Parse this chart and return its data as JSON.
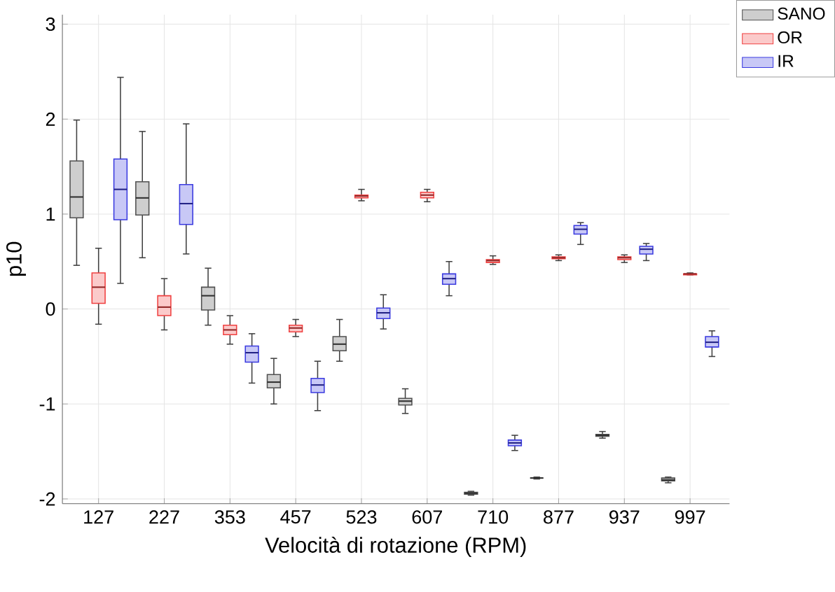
{
  "chart_data": {
    "type": "box",
    "xlabel": "Velocità di rotazione (RPM)",
    "ylabel": "p10",
    "categories": [
      "127",
      "227",
      "353",
      "457",
      "523",
      "607",
      "710",
      "877",
      "937",
      "997"
    ],
    "ylim": [
      -2.05,
      3.1
    ],
    "yticks": [
      -2,
      -1,
      0,
      1,
      2,
      3
    ],
    "grid": true,
    "legend": "top right",
    "series": [
      {
        "name": "SANO",
        "color": "#505050",
        "boxes": [
          {
            "low": 0.46,
            "q1": 0.96,
            "median": 1.18,
            "q3": 1.56,
            "high": 1.99
          },
          {
            "low": 0.54,
            "q1": 0.99,
            "median": 1.17,
            "q3": 1.34,
            "high": 1.87
          },
          {
            "low": -0.17,
            "q1": -0.01,
            "median": 0.14,
            "q3": 0.23,
            "high": 0.43
          },
          {
            "low": -1.0,
            "q1": -0.83,
            "median": -0.77,
            "q3": -0.69,
            "high": -0.52
          },
          {
            "low": -0.55,
            "q1": -0.44,
            "median": -0.37,
            "q3": -0.29,
            "high": -0.11
          },
          {
            "low": -1.1,
            "q1": -1.01,
            "median": -0.97,
            "q3": -0.94,
            "high": -0.84
          },
          {
            "low": -1.96,
            "q1": -1.95,
            "median": -1.94,
            "q3": -1.93,
            "high": -1.92
          },
          {
            "low": -1.79,
            "q1": -1.78,
            "median": -1.78,
            "q3": -1.78,
            "high": -1.77
          },
          {
            "low": -1.36,
            "q1": -1.34,
            "median": -1.33,
            "q3": -1.32,
            "high": -1.29
          },
          {
            "low": -1.83,
            "q1": -1.81,
            "median": -1.8,
            "q3": -1.78,
            "high": -1.77
          }
        ]
      },
      {
        "name": "OR",
        "color": "#f04040",
        "boxes": [
          {
            "low": -0.16,
            "q1": 0.06,
            "median": 0.23,
            "q3": 0.38,
            "high": 0.64
          },
          {
            "low": -0.22,
            "q1": -0.07,
            "median": 0.02,
            "q3": 0.14,
            "high": 0.32
          },
          {
            "low": -0.37,
            "q1": -0.27,
            "median": -0.22,
            "q3": -0.17,
            "high": -0.07
          },
          {
            "low": -0.29,
            "q1": -0.24,
            "median": -0.2,
            "q3": -0.17,
            "high": -0.11
          },
          {
            "low": 1.14,
            "q1": 1.17,
            "median": 1.19,
            "q3": 1.2,
            "high": 1.26
          },
          {
            "low": 1.13,
            "q1": 1.17,
            "median": 1.2,
            "q3": 1.23,
            "high": 1.26
          },
          {
            "low": 0.47,
            "q1": 0.49,
            "median": 0.51,
            "q3": 0.52,
            "high": 0.56
          },
          {
            "low": 0.51,
            "q1": 0.53,
            "median": 0.54,
            "q3": 0.55,
            "high": 0.57
          },
          {
            "low": 0.49,
            "q1": 0.52,
            "median": 0.54,
            "q3": 0.55,
            "high": 0.57
          },
          {
            "low": 0.36,
            "q1": 0.36,
            "median": 0.37,
            "q3": 0.37,
            "high": 0.38
          }
        ]
      },
      {
        "name": "IR",
        "color": "#3a3ae0",
        "boxes": [
          {
            "low": 0.27,
            "q1": 0.94,
            "median": 1.26,
            "q3": 1.58,
            "high": 2.44
          },
          {
            "low": 0.58,
            "q1": 0.89,
            "median": 1.11,
            "q3": 1.31,
            "high": 1.95
          },
          {
            "low": -0.78,
            "q1": -0.56,
            "median": -0.46,
            "q3": -0.39,
            "high": -0.26
          },
          {
            "low": -1.07,
            "q1": -0.88,
            "median": -0.8,
            "q3": -0.73,
            "high": -0.55
          },
          {
            "low": -0.21,
            "q1": -0.1,
            "median": -0.04,
            "q3": 0.01,
            "high": 0.15
          },
          {
            "low": 0.14,
            "q1": 0.26,
            "median": 0.32,
            "q3": 0.37,
            "high": 0.5
          },
          {
            "low": -1.49,
            "q1": -1.44,
            "median": -1.41,
            "q3": -1.38,
            "high": -1.33
          },
          {
            "low": 0.68,
            "q1": 0.79,
            "median": 0.84,
            "q3": 0.88,
            "high": 0.91
          },
          {
            "low": 0.51,
            "q1": 0.58,
            "median": 0.63,
            "q3": 0.66,
            "high": 0.69
          },
          {
            "low": -0.5,
            "q1": -0.4,
            "median": -0.35,
            "q3": -0.29,
            "high": -0.23
          }
        ]
      }
    ]
  }
}
